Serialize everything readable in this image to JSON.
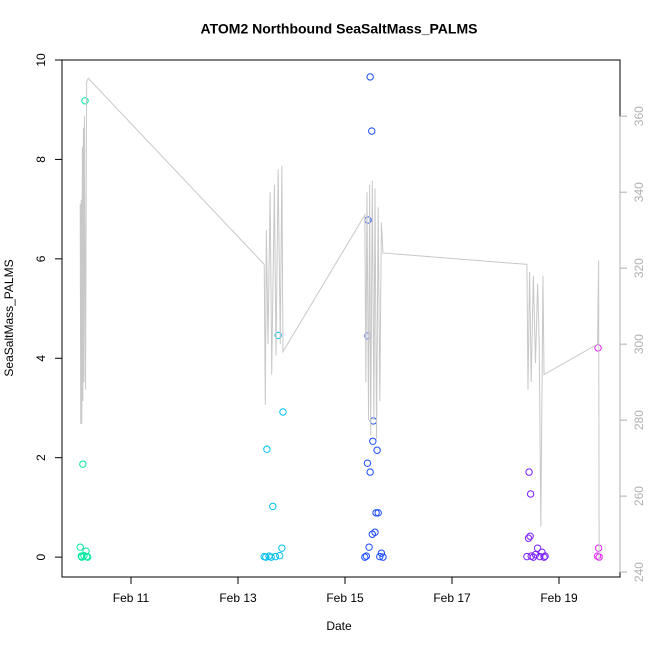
{
  "chart_data": {
    "type": "scatter",
    "title": "ATOM2 Northbound SeaSaltMass_PALMS",
    "xlabel": "Date",
    "ylabel": "SeaSaltMass_PALMS",
    "xlim": [
      9.71,
      20.14
    ],
    "ylim": [
      -0.4,
      10
    ],
    "y2lim": [
      238.7,
      374.8
    ],
    "xticks": [
      {
        "value": 11,
        "label": "Feb 11"
      },
      {
        "value": 13,
        "label": "Feb 13"
      },
      {
        "value": 15,
        "label": "Feb 15"
      },
      {
        "value": 17,
        "label": "Feb 17"
      },
      {
        "value": 19,
        "label": "Feb 19"
      }
    ],
    "yticks": [
      0,
      2,
      4,
      6,
      8,
      10
    ],
    "y2ticks": [
      240,
      260,
      280,
      300,
      320,
      340,
      360
    ],
    "y2color": "#b0b0b0",
    "series": [
      {
        "color": "#00e8a0",
        "x": [
          10.05,
          10.07,
          10.08,
          10.1,
          10.12,
          10.14,
          10.16,
          10.17,
          10.19
        ],
        "values": [
          0.2,
          0.02,
          0,
          1.87,
          0.03,
          9.18,
          0.12,
          0.01,
          0
        ]
      },
      {
        "color": "#00c0f0",
        "x": [
          13.49,
          13.52,
          13.54,
          13.58,
          13.62,
          13.65,
          13.7,
          13.75,
          13.78,
          13.82,
          13.84
        ],
        "values": [
          0.01,
          0,
          2.17,
          0.02,
          0,
          1.02,
          0.01,
          4.46,
          0.03,
          0.18,
          2.92
        ]
      },
      {
        "color": "#1a4cff",
        "x": [
          15.37,
          15.4,
          15.42,
          15.43,
          15.43,
          15.45,
          15.47,
          15.47,
          15.5,
          15.51,
          15.52,
          15.53,
          15.56,
          15.58,
          15.6,
          15.62,
          15.65,
          15.68,
          15.71
        ],
        "values": [
          0,
          0.02,
          1.89,
          6.78,
          4.45,
          0.2,
          9.66,
          1.71,
          8.57,
          0.46,
          2.33,
          2.74,
          0.5,
          0.89,
          2.15,
          0.89,
          0.01,
          0.08,
          0
        ]
      },
      {
        "color": "#7a1fff",
        "x": [
          18.4,
          18.43,
          18.44,
          18.46,
          18.47,
          18.48,
          18.52,
          18.56,
          18.6,
          18.64,
          18.68,
          18.72,
          18.74
        ],
        "values": [
          0.01,
          0.38,
          1.71,
          0.42,
          1.27,
          0.02,
          0,
          0.05,
          0.18,
          0.01,
          0.1,
          0,
          0.02
        ]
      },
      {
        "color": "#e61fff",
        "x": [
          19.72,
          19.73,
          19.74,
          19.75
        ],
        "values": [
          0.02,
          4.21,
          0.18,
          0
        ]
      },
      {
        "type": "line",
        "axis": "y2",
        "color": "#c8c8c8",
        "x": [
          10.05,
          10.06,
          10.07,
          10.08,
          10.09,
          10.1,
          10.11,
          10.12,
          10.13,
          10.15,
          10.17,
          10.2,
          13.49,
          13.51,
          13.53,
          13.56,
          13.6,
          13.63,
          13.68,
          13.71,
          13.75,
          13.79,
          13.82,
          13.84,
          15.37,
          15.39,
          15.41,
          15.44,
          15.46,
          15.48,
          15.51,
          15.54,
          15.56,
          15.59,
          15.62,
          15.65,
          15.68,
          15.71,
          18.4,
          18.42,
          18.45,
          18.48,
          18.52,
          18.56,
          18.6,
          18.63,
          18.66,
          18.7,
          18.72,
          19.72,
          19.74,
          19.75
        ],
        "values": [
          337,
          279,
          338,
          279,
          352,
          285,
          357,
          290,
          360,
          288,
          369,
          370,
          321,
          284,
          330,
          300,
          340,
          292,
          342,
          297,
          346,
          300,
          347,
          298,
          334,
          290,
          340,
          280,
          342,
          276,
          343,
          280,
          341,
          275,
          336,
          285,
          332,
          324,
          321,
          288,
          319,
          290,
          318,
          295,
          316,
          300,
          252,
          318,
          292,
          300,
          322,
          243
        ]
      }
    ]
  }
}
